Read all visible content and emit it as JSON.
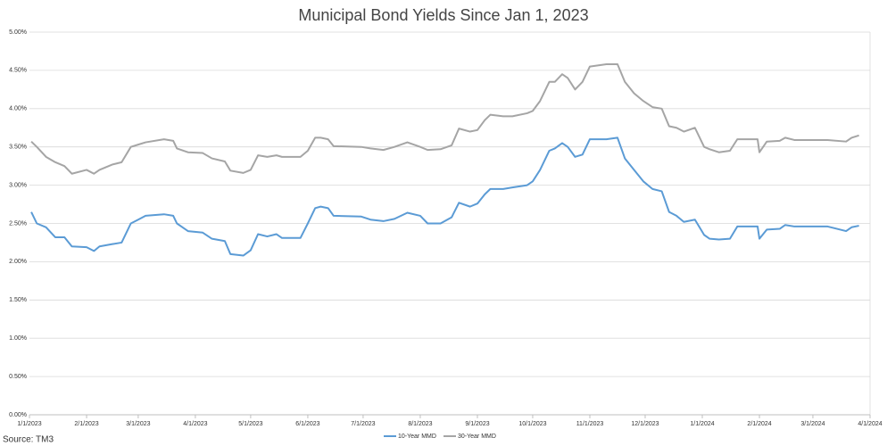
{
  "chart_data": {
    "type": "line",
    "title": "Municipal Bond Yields Since Jan 1, 2023",
    "source": "Source: TM3",
    "x": [
      "1/2/2023",
      "1/5/2023",
      "1/10/2023",
      "1/15/2023",
      "1/20/2023",
      "1/24/2023",
      "2/1/2023",
      "2/5/2023",
      "2/8/2023",
      "2/15/2023",
      "2/20/2023",
      "2/25/2023",
      "3/1/2023",
      "3/5/2023",
      "3/15/2023",
      "3/20/2023",
      "3/22/2023",
      "3/28/2023",
      "4/5/2023",
      "4/10/2023",
      "4/17/2023",
      "4/20/2023",
      "4/27/2023",
      "5/1/2023",
      "5/5/2023",
      "5/10/2023",
      "5/15/2023",
      "5/18/2023",
      "5/28/2023",
      "6/1/2023",
      "6/5/2023",
      "6/8/2023",
      "6/12/2023",
      "6/15/2023",
      "6/30/2023",
      "7/5/2023",
      "7/12/2023",
      "7/18/2023",
      "7/25/2023",
      "8/1/2023",
      "8/5/2023",
      "8/12/2023",
      "8/18/2023",
      "8/22/2023",
      "8/28/2023",
      "9/1/2023",
      "9/5/2023",
      "9/8/2023",
      "9/15/2023",
      "9/20/2023",
      "9/28/2023",
      "10/1/2023",
      "10/5/2023",
      "10/10/2023",
      "10/13/2023",
      "10/17/2023",
      "10/20/2023",
      "10/24/2023",
      "10/28/2023",
      "11/1/2023",
      "11/10/2023",
      "11/16/2023",
      "11/20/2023",
      "11/25/2023",
      "11/30/2023",
      "12/5/2023",
      "12/10/2023",
      "12/14/2023",
      "12/18/2023",
      "12/22/2023",
      "12/28/2023",
      "1/2/2024",
      "1/5/2024",
      "1/10/2024",
      "1/16/2024",
      "1/20/2024",
      "1/31/2024",
      "2/1/2024",
      "2/5/2024",
      "2/12/2024",
      "2/15/2024",
      "2/20/2024",
      "3/9/2024",
      "3/19/2024",
      "3/22/2024",
      "3/26/2024"
    ],
    "series": [
      {
        "name": "10-Year MMD",
        "color": "#5b9bd5",
        "values": [
          2.65,
          2.5,
          2.45,
          2.32,
          2.32,
          2.2,
          2.19,
          2.14,
          2.2,
          2.23,
          2.25,
          2.5,
          2.55,
          2.6,
          2.62,
          2.6,
          2.5,
          2.4,
          2.38,
          2.3,
          2.27,
          2.1,
          2.08,
          2.15,
          2.36,
          2.33,
          2.36,
          2.31,
          2.31,
          2.5,
          2.7,
          2.72,
          2.7,
          2.6,
          2.59,
          2.55,
          2.53,
          2.56,
          2.64,
          2.6,
          2.5,
          2.5,
          2.58,
          2.77,
          2.72,
          2.76,
          2.88,
          2.95,
          2.95,
          2.97,
          3.0,
          3.05,
          3.2,
          3.45,
          3.48,
          3.55,
          3.5,
          3.37,
          3.4,
          3.6,
          3.6,
          3.62,
          3.35,
          3.2,
          3.05,
          2.95,
          2.92,
          2.65,
          2.6,
          2.52,
          2.55,
          2.35,
          2.3,
          2.29,
          2.3,
          2.46,
          2.46,
          2.3,
          2.42,
          2.43,
          2.48,
          2.46,
          2.46,
          2.4,
          2.45,
          2.47
        ]
      },
      {
        "name": "30-Year MMD",
        "color": "#a5a5a5",
        "values": [
          3.57,
          3.5,
          3.37,
          3.3,
          3.25,
          3.15,
          3.2,
          3.15,
          3.2,
          3.27,
          3.3,
          3.5,
          3.53,
          3.56,
          3.6,
          3.58,
          3.48,
          3.43,
          3.42,
          3.35,
          3.31,
          3.19,
          3.16,
          3.2,
          3.39,
          3.37,
          3.39,
          3.37,
          3.37,
          3.45,
          3.62,
          3.62,
          3.6,
          3.51,
          3.5,
          3.48,
          3.46,
          3.5,
          3.56,
          3.5,
          3.46,
          3.47,
          3.52,
          3.74,
          3.7,
          3.72,
          3.85,
          3.92,
          3.9,
          3.9,
          3.94,
          3.97,
          4.1,
          4.35,
          4.35,
          4.45,
          4.4,
          4.25,
          4.35,
          4.55,
          4.58,
          4.58,
          4.35,
          4.2,
          4.1,
          4.02,
          4.0,
          3.77,
          3.75,
          3.7,
          3.75,
          3.5,
          3.47,
          3.43,
          3.45,
          3.6,
          3.6,
          3.43,
          3.57,
          3.58,
          3.62,
          3.59,
          3.59,
          3.57,
          3.62,
          3.65
        ]
      }
    ],
    "xlim": [
      "1/1/2023",
      "4/1/2024"
    ],
    "xticks": [
      "1/1/2023",
      "2/1/2023",
      "3/1/2023",
      "4/1/2023",
      "5/1/2023",
      "6/1/2023",
      "7/1/2023",
      "8/1/2023",
      "9/1/2023",
      "10/1/2023",
      "11/1/2023",
      "12/1/2023",
      "1/1/2024",
      "2/1/2024",
      "3/1/2024",
      "4/1/2024"
    ],
    "ylim": [
      0,
      5
    ],
    "yticks": [
      {
        "value": 0,
        "label": "0.00%"
      },
      {
        "value": 0.5,
        "label": "0.50%"
      },
      {
        "value": 1,
        "label": "1.00%"
      },
      {
        "value": 1.5,
        "label": "1.50%"
      },
      {
        "value": 2,
        "label": "2.00%"
      },
      {
        "value": 2.5,
        "label": "2.50%"
      },
      {
        "value": 3,
        "label": "3.00%"
      },
      {
        "value": 3.5,
        "label": "3.50%"
      },
      {
        "value": 4,
        "label": "4.00%"
      },
      {
        "value": 4.5,
        "label": "4.50%"
      },
      {
        "value": 5,
        "label": "5.00%"
      }
    ],
    "grid": true,
    "legend": "bottom"
  }
}
